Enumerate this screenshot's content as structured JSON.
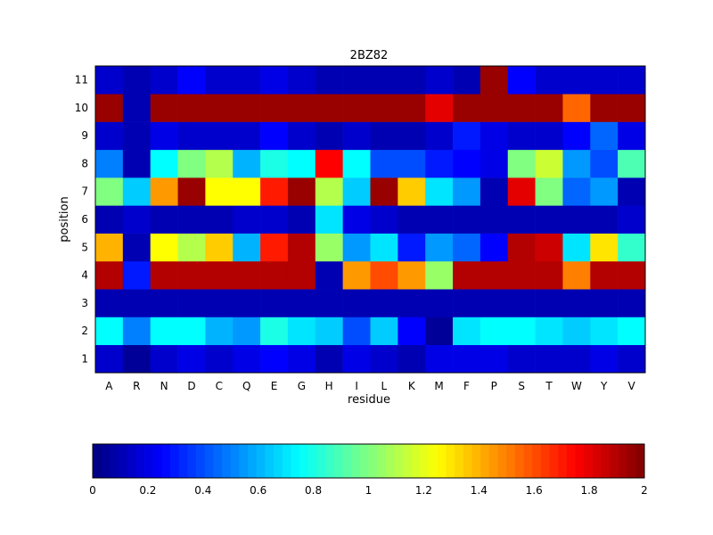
{
  "chart_data": {
    "type": "heatmap",
    "title": "2BZ82",
    "xlabel": "residue",
    "ylabel": "position",
    "x_categories": [
      "A",
      "R",
      "N",
      "D",
      "C",
      "Q",
      "E",
      "G",
      "H",
      "I",
      "L",
      "K",
      "M",
      "F",
      "P",
      "S",
      "T",
      "W",
      "Y",
      "V"
    ],
    "y_categories": [
      "1",
      "2",
      "3",
      "4",
      "5",
      "6",
      "7",
      "8",
      "9",
      "10",
      "11"
    ],
    "values": [
      [
        0.15,
        0.05,
        0.15,
        0.2,
        0.15,
        0.2,
        0.25,
        0.2,
        0.1,
        0.2,
        0.15,
        0.1,
        0.2,
        0.2,
        0.2,
        0.15,
        0.15,
        0.15,
        0.2,
        0.15
      ],
      [
        0.75,
        0.5,
        0.75,
        0.75,
        0.6,
        0.55,
        0.8,
        0.7,
        0.65,
        0.4,
        0.65,
        0.25,
        0.05,
        0.7,
        0.75,
        0.75,
        0.7,
        0.65,
        0.7,
        0.75
      ],
      [
        0.1,
        0.1,
        0.1,
        0.1,
        0.1,
        0.1,
        0.1,
        0.1,
        0.1,
        0.1,
        0.1,
        0.1,
        0.1,
        0.1,
        0.1,
        0.1,
        0.1,
        0.1,
        0.1,
        0.1
      ],
      [
        1.9,
        0.3,
        1.9,
        1.9,
        1.9,
        1.9,
        1.9,
        1.9,
        0.1,
        1.45,
        1.6,
        1.45,
        1.05,
        1.9,
        1.9,
        1.9,
        1.9,
        1.5,
        1.9,
        1.9
      ],
      [
        1.4,
        0.1,
        1.25,
        1.1,
        1.35,
        0.6,
        1.7,
        1.9,
        1.05,
        0.55,
        0.7,
        0.3,
        0.55,
        0.45,
        0.25,
        1.9,
        1.85,
        0.7,
        1.3,
        0.85
      ],
      [
        0.1,
        0.15,
        0.1,
        0.1,
        0.1,
        0.15,
        0.15,
        0.1,
        0.7,
        0.2,
        0.15,
        0.1,
        0.1,
        0.1,
        0.1,
        0.1,
        0.1,
        0.1,
        0.1,
        0.15
      ],
      [
        1.0,
        0.65,
        1.45,
        1.95,
        1.25,
        1.25,
        1.7,
        1.95,
        1.1,
        0.65,
        1.95,
        1.35,
        0.7,
        0.55,
        0.1,
        1.8,
        1.0,
        0.45,
        0.55,
        0.1
      ],
      [
        0.5,
        0.1,
        0.75,
        1.0,
        1.1,
        0.6,
        0.8,
        0.75,
        1.75,
        0.75,
        0.4,
        0.4,
        0.3,
        0.25,
        0.2,
        1.0,
        1.15,
        0.55,
        0.4,
        0.9
      ],
      [
        0.15,
        0.1,
        0.2,
        0.15,
        0.15,
        0.15,
        0.25,
        0.15,
        0.1,
        0.15,
        0.1,
        0.1,
        0.15,
        0.3,
        0.2,
        0.15,
        0.15,
        0.25,
        0.45,
        0.2
      ],
      [
        1.95,
        0.1,
        1.95,
        1.95,
        1.95,
        1.95,
        1.95,
        1.95,
        1.95,
        1.95,
        1.95,
        1.95,
        1.8,
        1.95,
        1.95,
        1.95,
        1.95,
        1.55,
        1.95,
        1.95
      ],
      [
        0.15,
        0.1,
        0.15,
        0.25,
        0.15,
        0.15,
        0.2,
        0.15,
        0.1,
        0.1,
        0.1,
        0.1,
        0.15,
        0.1,
        1.95,
        0.25,
        0.15,
        0.15,
        0.15,
        0.15
      ]
    ],
    "colorbar": {
      "colormap": "jet",
      "range": [
        0,
        2
      ],
      "ticks": [
        "0",
        "0.2",
        "0.4",
        "0.6",
        "0.8",
        "1",
        "1.2",
        "1.4",
        "1.6",
        "1.8",
        "2"
      ]
    },
    "grid": false
  }
}
